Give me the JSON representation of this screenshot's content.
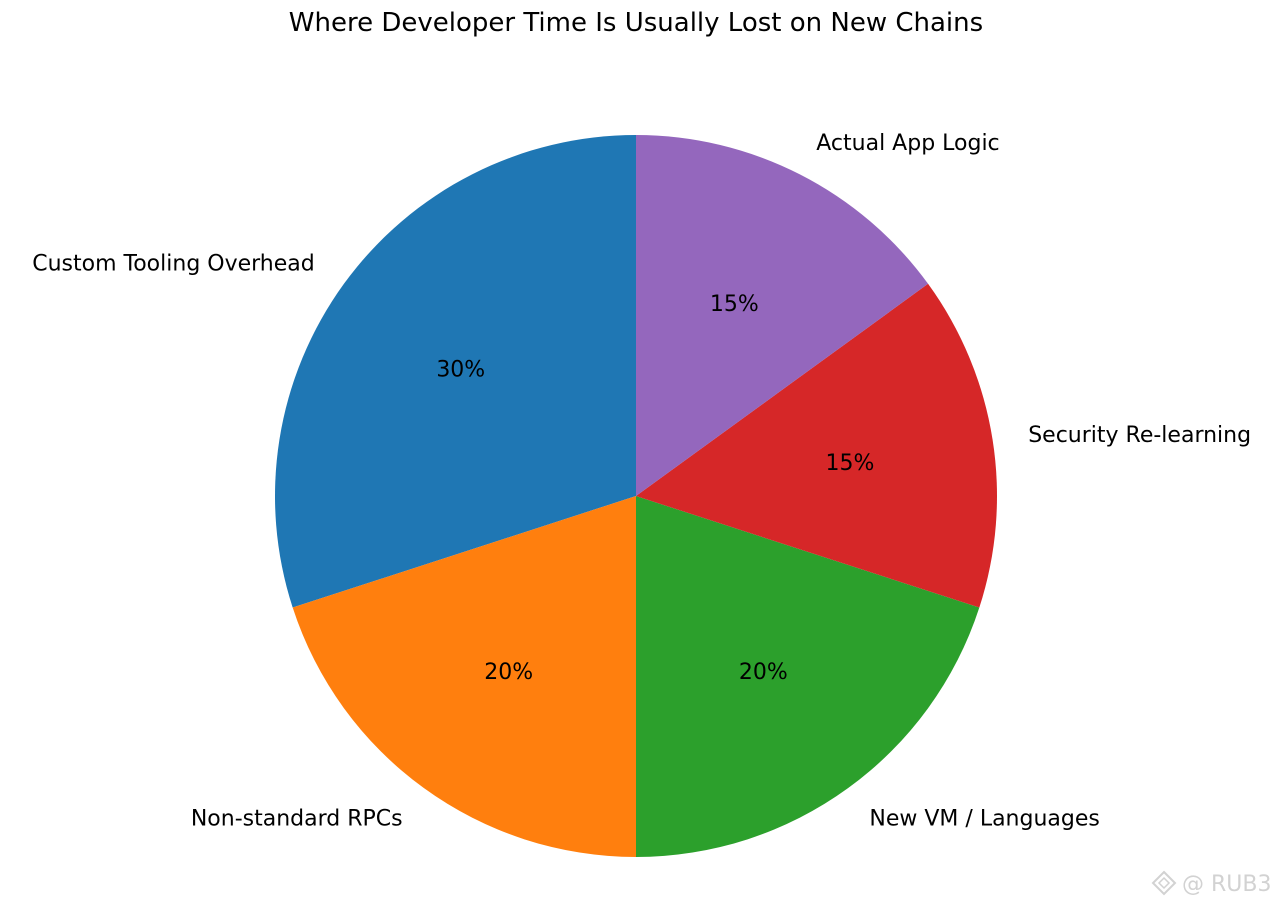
{
  "chart_data": {
    "type": "pie",
    "title": "Where Developer Time Is Usually Lost on New Chains",
    "categories": [
      "Custom Tooling Overhead",
      "Non-standard RPCs",
      "New VM / Languages",
      "Security Re-learning",
      "Actual App Logic"
    ],
    "values": [
      30,
      20,
      20,
      15,
      15
    ],
    "value_labels": [
      "30%",
      "20%",
      "20%",
      "15%",
      "15%"
    ],
    "colors": [
      "#1f77b4",
      "#ff7f0e",
      "#2ca02c",
      "#d62728",
      "#9467bd"
    ],
    "start_angle": 90,
    "direction": "counterclockwise",
    "legend": "none"
  },
  "watermark": {
    "text": "@ RUB3",
    "icon": "logo-icon"
  }
}
